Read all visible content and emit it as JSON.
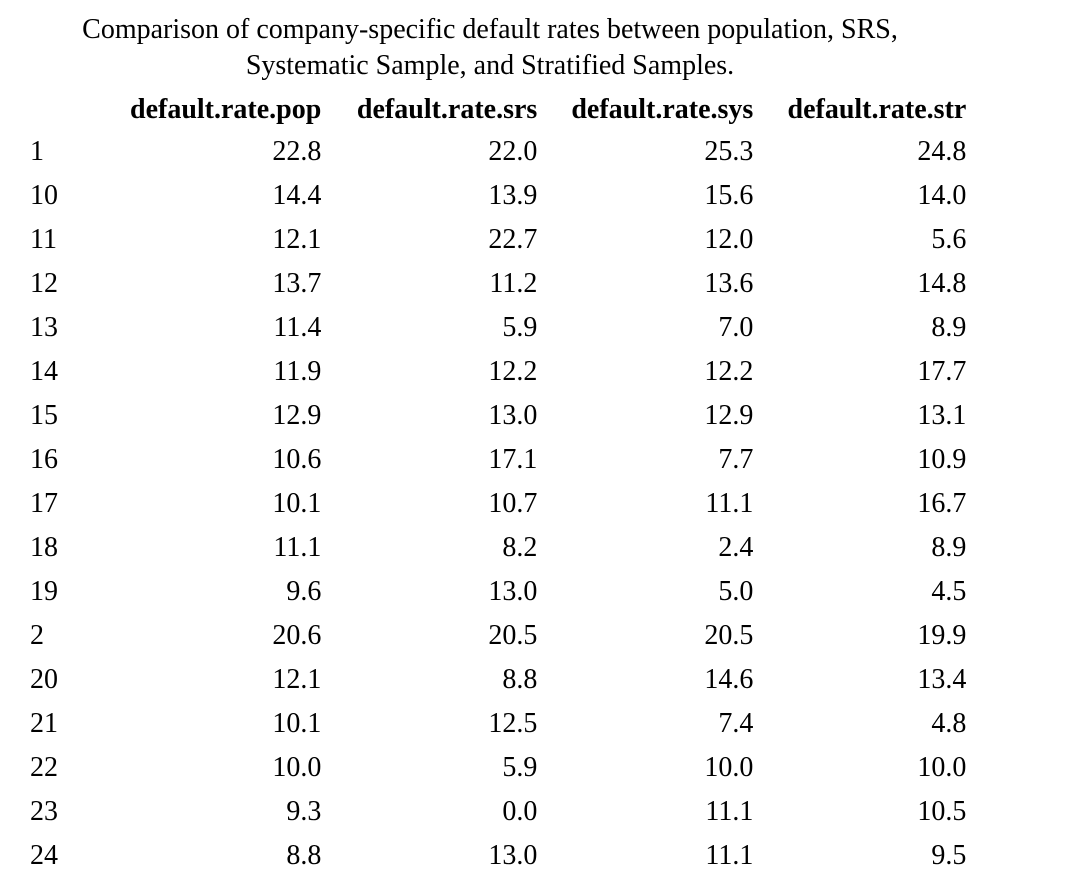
{
  "caption": {
    "line1": "Comparison of company-specific default rates between population, SRS,",
    "line2": "Systematic Sample, and Stratified Samples."
  },
  "table": {
    "columns": [
      "",
      "default.rate.pop",
      "default.rate.srs",
      "default.rate.sys",
      "default.rate.str"
    ],
    "rows": [
      [
        "1",
        "22.8",
        "22.0",
        "25.3",
        "24.8"
      ],
      [
        "10",
        "14.4",
        "13.9",
        "15.6",
        "14.0"
      ],
      [
        "11",
        "12.1",
        "22.7",
        "12.0",
        "5.6"
      ],
      [
        "12",
        "13.7",
        "11.2",
        "13.6",
        "14.8"
      ],
      [
        "13",
        "11.4",
        "5.9",
        "7.0",
        "8.9"
      ],
      [
        "14",
        "11.9",
        "12.2",
        "12.2",
        "17.7"
      ],
      [
        "15",
        "12.9",
        "13.0",
        "12.9",
        "13.1"
      ],
      [
        "16",
        "10.6",
        "17.1",
        "7.7",
        "10.9"
      ],
      [
        "17",
        "10.1",
        "10.7",
        "11.1",
        "16.7"
      ],
      [
        "18",
        "11.1",
        "8.2",
        "2.4",
        "8.9"
      ],
      [
        "19",
        "9.6",
        "13.0",
        "5.0",
        "4.5"
      ],
      [
        "2",
        "20.6",
        "20.5",
        "20.5",
        "19.9"
      ],
      [
        "20",
        "12.1",
        "8.8",
        "14.6",
        "13.4"
      ],
      [
        "21",
        "10.1",
        "12.5",
        "7.4",
        "4.8"
      ],
      [
        "22",
        "10.0",
        "5.9",
        "10.0",
        "10.0"
      ],
      [
        "23",
        "9.3",
        "0.0",
        "11.1",
        "10.5"
      ],
      [
        "24",
        "8.8",
        "13.0",
        "11.1",
        "9.5"
      ]
    ]
  }
}
